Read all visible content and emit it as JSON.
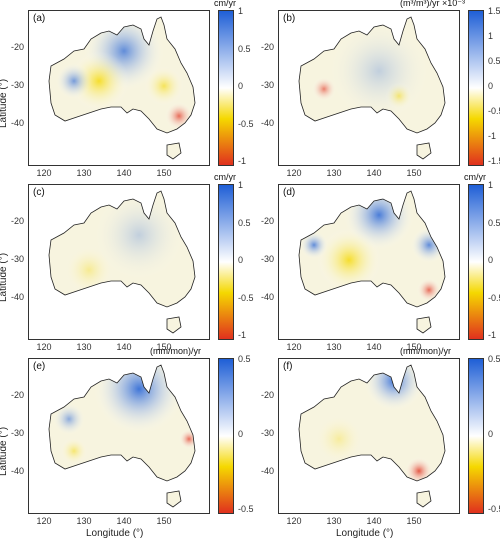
{
  "axes": {
    "ylabel": "Latitude (°)",
    "xlabel": "Longitude (°)",
    "y_ticks": [
      "-20",
      "-30",
      "-40"
    ],
    "x_ticks": [
      "120",
      "130",
      "140",
      "150"
    ]
  },
  "panels": [
    {
      "label": "(a)",
      "unit": "cm/yr",
      "ticks": [
        "1",
        "0.5",
        "0",
        "-0.5",
        "-1"
      ],
      "pattern": "a"
    },
    {
      "label": "(b)",
      "unit": "(m³/m³)/yr  ×10⁻³",
      "ticks": [
        "1.5",
        "1",
        "0.5",
        "0",
        "-0.5",
        "-1",
        "-1.5"
      ],
      "pattern": "b"
    },
    {
      "label": "(c)",
      "unit": "cm/yr",
      "ticks": [
        "1",
        "0.5",
        "0",
        "-0.5",
        "-1"
      ],
      "pattern": "c"
    },
    {
      "label": "(d)",
      "unit": "cm/yr",
      "ticks": [
        "1",
        "0.5",
        "0",
        "-0.5",
        "-1"
      ],
      "pattern": "d"
    },
    {
      "label": "(e)",
      "unit": "(mm/mon)/yr",
      "ticks": [
        "0.5",
        "0",
        "-0.5"
      ],
      "pattern": "e"
    },
    {
      "label": "(f)",
      "unit": "(mm/mon)/yr",
      "ticks": [
        "0.5",
        "0",
        "-0.5"
      ],
      "pattern": "f"
    }
  ],
  "colors": {
    "positive": "#1f5fd6",
    "neutral": "#ffffff",
    "negative_mid": "#f5d800",
    "negative": "#e0301e",
    "coast": "#222222"
  }
}
